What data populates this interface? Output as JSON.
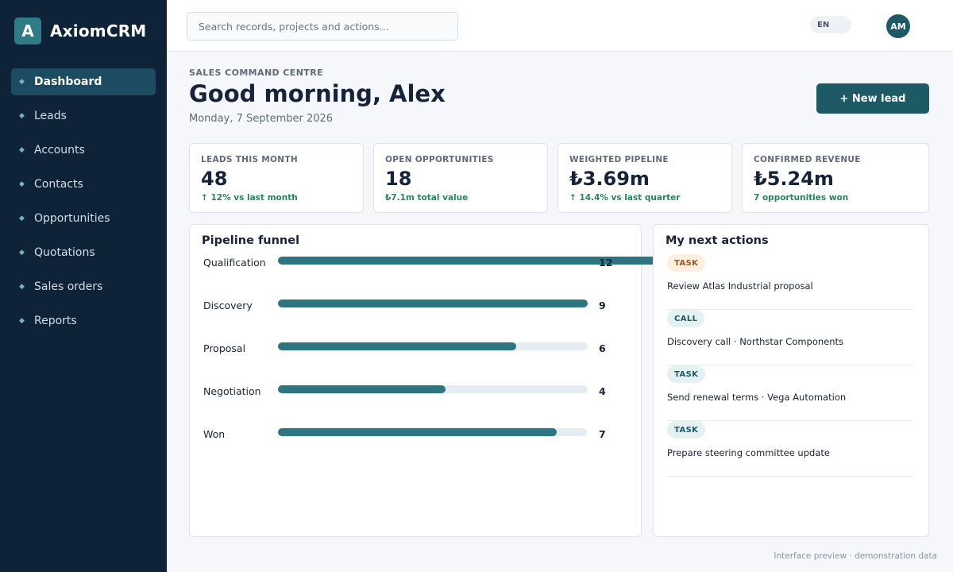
{
  "app": {
    "logo_letter": "A",
    "name": "AxiomCRM"
  },
  "sidebar": {
    "items": [
      {
        "label": "Dashboard",
        "active": true
      },
      {
        "label": "Leads"
      },
      {
        "label": "Accounts"
      },
      {
        "label": "Contacts"
      },
      {
        "label": "Opportunities"
      },
      {
        "label": "Quotations"
      },
      {
        "label": "Sales orders"
      },
      {
        "label": "Reports"
      }
    ]
  },
  "header": {
    "search_placeholder": "Search records, projects and actions...",
    "language": "EN",
    "avatar_initials": "AM"
  },
  "page": {
    "eyebrow": "SALES COMMAND CENTRE",
    "title": "Good morning, Alex",
    "date": "Monday, 7 September 2026",
    "new_lead_label": "+ New lead"
  },
  "kpis": [
    {
      "label": "LEADS THIS MONTH",
      "value": "48",
      "note": "↑ 12% vs last month"
    },
    {
      "label": "OPEN OPPORTUNITIES",
      "value": "18",
      "note": "₺7.1m total value"
    },
    {
      "label": "WEIGHTED PIPELINE",
      "value": "₺3.69m",
      "note": "↑ 14.4% vs last quarter"
    },
    {
      "label": "CONFIRMED REVENUE",
      "value": "₺5.24m",
      "note": "7 opportunities won"
    }
  ],
  "funnel": {
    "title": "Pipeline funnel",
    "stages": [
      {
        "label": "Qualification",
        "count": "12",
        "fill_fraction": 1.26
      },
      {
        "label": "Discovery",
        "count": "9",
        "fill_fraction": 1.0
      },
      {
        "label": "Proposal",
        "count": "6",
        "fill_fraction": 0.77
      },
      {
        "label": "Negotiation",
        "count": "4",
        "fill_fraction": 0.54
      },
      {
        "label": "Won",
        "count": "7",
        "fill_fraction": 0.9
      }
    ]
  },
  "actions": {
    "title": "My next actions",
    "items": [
      {
        "type": "TASK",
        "text": "Review Atlas Industrial proposal",
        "badge_style": "task"
      },
      {
        "type": "CALL",
        "text": "Discovery call · Northstar Components",
        "badge_style": "teal"
      },
      {
        "type": "TASK",
        "text": "Send renewal terms · Vega Automation",
        "badge_style": "teal"
      },
      {
        "type": "TASK",
        "text": "Prepare steering committee update",
        "badge_style": "teal"
      }
    ]
  },
  "footer": {
    "note": "Interface preview · demonstration data"
  },
  "colors": {
    "sidebar": "#0e2337",
    "accent": "#1d5a66",
    "bar": "#2d7580",
    "positive": "#27855a"
  }
}
